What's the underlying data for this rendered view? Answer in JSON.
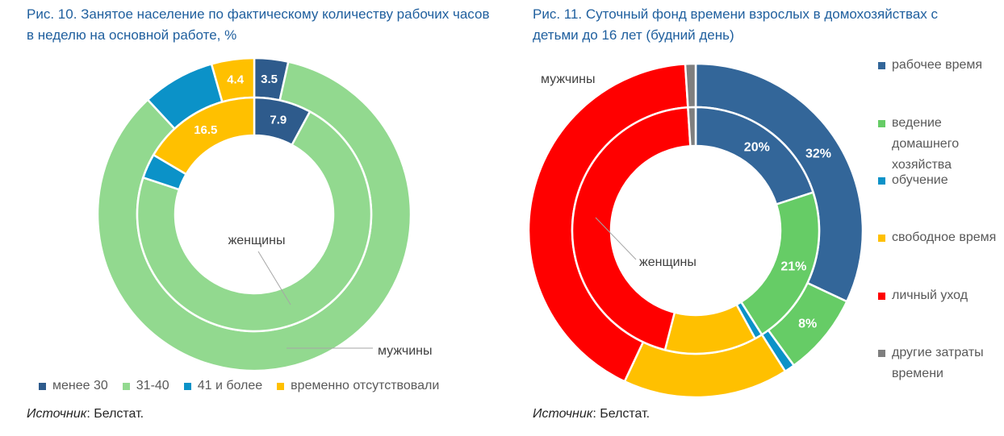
{
  "chart_data": [
    {
      "type": "donut",
      "title": "Рис. 10. Занятое население по фактическому количеству рабочих часов в неделю на основной работе, %",
      "categories": [
        "менее 30",
        "31-40",
        "41 и более",
        "временно отсутствовали"
      ],
      "colors": [
        "#2e5b8c",
        "#92d98f",
        "#0b92c8",
        "#ffc000"
      ],
      "series": [
        {
          "name": "мужчины",
          "ring": "outer",
          "values": [
            3.5,
            84.6,
            7.5,
            4.4
          ],
          "labels": [
            "3.5",
            "",
            "",
            "4.4"
          ]
        },
        {
          "name": "женщины",
          "ring": "inner",
          "values": [
            7.9,
            72.2,
            3.4,
            16.5
          ],
          "labels": [
            "7.9",
            "",
            "",
            "16.5"
          ]
        }
      ],
      "legend": "bottom",
      "source_label": "Источник",
      "source": ": Белстат."
    },
    {
      "type": "donut",
      "title": "Рис. 11. Суточный фонд времени взрослых в домохозяйствах с детьми до 16 лет (будний день)",
      "categories": [
        "рабочее время",
        "ведение домашнего хозяйства",
        "обучение",
        "свободное время",
        "личный уход",
        "другие затраты времени"
      ],
      "colors": [
        "#336699",
        "#66cc66",
        "#0b92c8",
        "#ffc000",
        "#ff0000",
        "#7f7f7f"
      ],
      "series": [
        {
          "name": "мужчины",
          "ring": "outer",
          "values": [
            32,
            8,
            1,
            16,
            42,
            1
          ],
          "labels": [
            "32%",
            "8%",
            "",
            "",
            "",
            ""
          ]
        },
        {
          "name": "женщины",
          "ring": "inner",
          "values": [
            20,
            21,
            1,
            12,
            45,
            1
          ],
          "labels": [
            "20%",
            "21%",
            "",
            "",
            "",
            ""
          ]
        }
      ],
      "legend": "right",
      "source_label": "Источник",
      "source": ": Белстат."
    }
  ]
}
